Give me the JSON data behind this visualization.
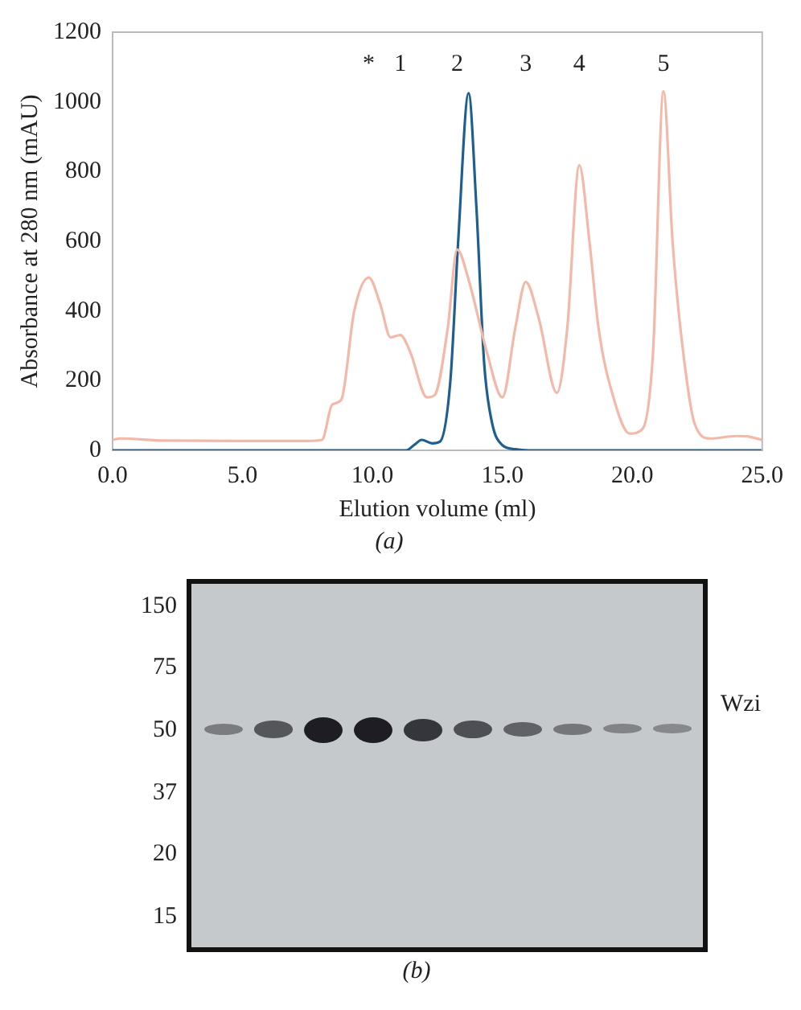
{
  "chart_data": [
    {
      "type": "line",
      "title": "(a)",
      "xlabel": "Elution volume (ml)",
      "ylabel": "Absorbance at 280 nm (mAU)",
      "xlim": [
        0,
        25
      ],
      "ylim": [
        0,
        1200
      ],
      "xticks": [
        {
          "value": 0,
          "label": "0.0"
        },
        {
          "value": 5,
          "label": "5.0"
        },
        {
          "value": 10,
          "label": "10.0"
        },
        {
          "value": 15,
          "label": "15.0"
        },
        {
          "value": 20,
          "label": "20.0"
        },
        {
          "value": 25,
          "label": "25.0"
        }
      ],
      "yticks": [
        0,
        200,
        400,
        600,
        800,
        1000,
        1200
      ],
      "grid": false,
      "legend": false,
      "marker": "none",
      "line_style": "solid",
      "series": [
        {
          "color": "#f4b8a8",
          "x": [
            0,
            0.3,
            2,
            5,
            7.5,
            8.06,
            8.45,
            8.8,
            9.3,
            9.86,
            10.3,
            10.7,
            11.07,
            11.45,
            12.1,
            12.4,
            12.9,
            13.26,
            13.7,
            14.4,
            15.0,
            15.5,
            15.9,
            16.4,
            17.1,
            17.5,
            17.96,
            18.35,
            18.7,
            19.3,
            19.9,
            20.4,
            20.8,
            21.2,
            21.55,
            21.85,
            22.4,
            23.0,
            24.0,
            24.4,
            25.0
          ],
          "values": [
            30,
            34,
            28,
            27,
            27,
            30,
            131,
            145,
            400,
            496,
            420,
            324,
            331,
            283,
            152,
            159,
            352,
            576,
            490,
            283,
            152,
            352,
            483,
            379,
            165,
            352,
            818,
            600,
            352,
            145,
            48,
            62,
            283,
            1030,
            600,
            352,
            76,
            34,
            41,
            40,
            30
          ]
        },
        {
          "color": "#1f5f8f",
          "x": [
            0,
            5,
            10,
            11.3,
            11.6,
            11.9,
            12.3,
            12.6,
            13.0,
            13.3,
            13.7,
            14.0,
            14.3,
            14.6,
            15.0,
            15.5,
            16.0,
            25.0
          ],
          "values": [
            0,
            0,
            0,
            0,
            15,
            30,
            20,
            25,
            200,
            600,
            1025,
            700,
            250,
            80,
            15,
            3,
            0,
            0
          ]
        }
      ],
      "annotations": [
        "*",
        "1",
        "2",
        "3",
        "4",
        "5"
      ]
    },
    {
      "type": "other",
      "title": "(b)",
      "annotations": [
        "150",
        "75",
        "50",
        "37",
        "20",
        "15",
        "Wzi"
      ]
    }
  ]
}
